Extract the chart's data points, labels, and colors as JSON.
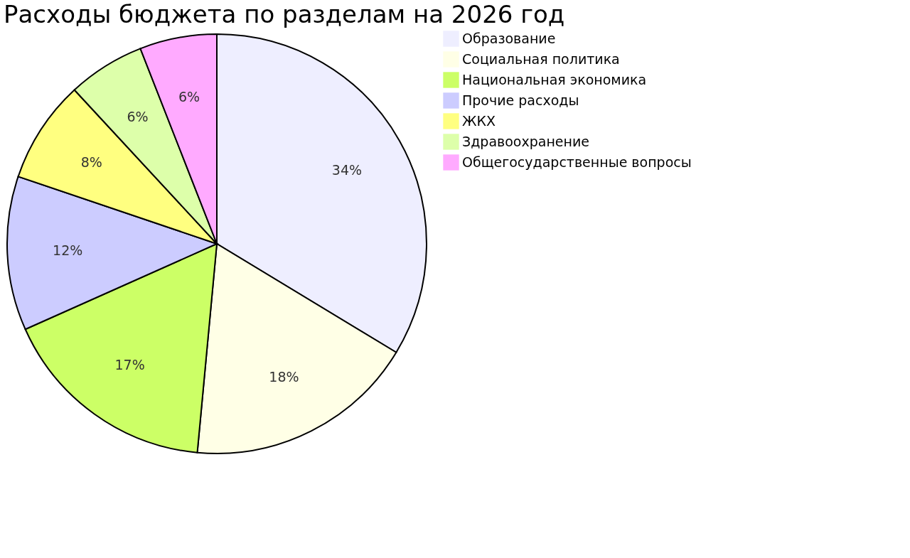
{
  "chart_data": {
    "type": "pie",
    "title": "Расходы бюджета по разделам на 2026 год",
    "categories": [
      "Образование",
      "Социальная политика",
      "Национальная экономика",
      "Прочие расходы",
      "ЖКХ",
      "Здравоохранение",
      "Общегосударственные вопросы"
    ],
    "values": [
      34,
      18,
      17,
      12,
      8,
      6,
      6
    ],
    "value_labels": [
      "34%",
      "18%",
      "17%",
      "12%",
      "8%",
      "6%",
      "6%"
    ],
    "colors": [
      "#eeeeff",
      "#ffffe6",
      "#ccff66",
      "#ccccff",
      "#ffff80",
      "#ddffaa",
      "#ffaaff"
    ],
    "legend": "right"
  }
}
